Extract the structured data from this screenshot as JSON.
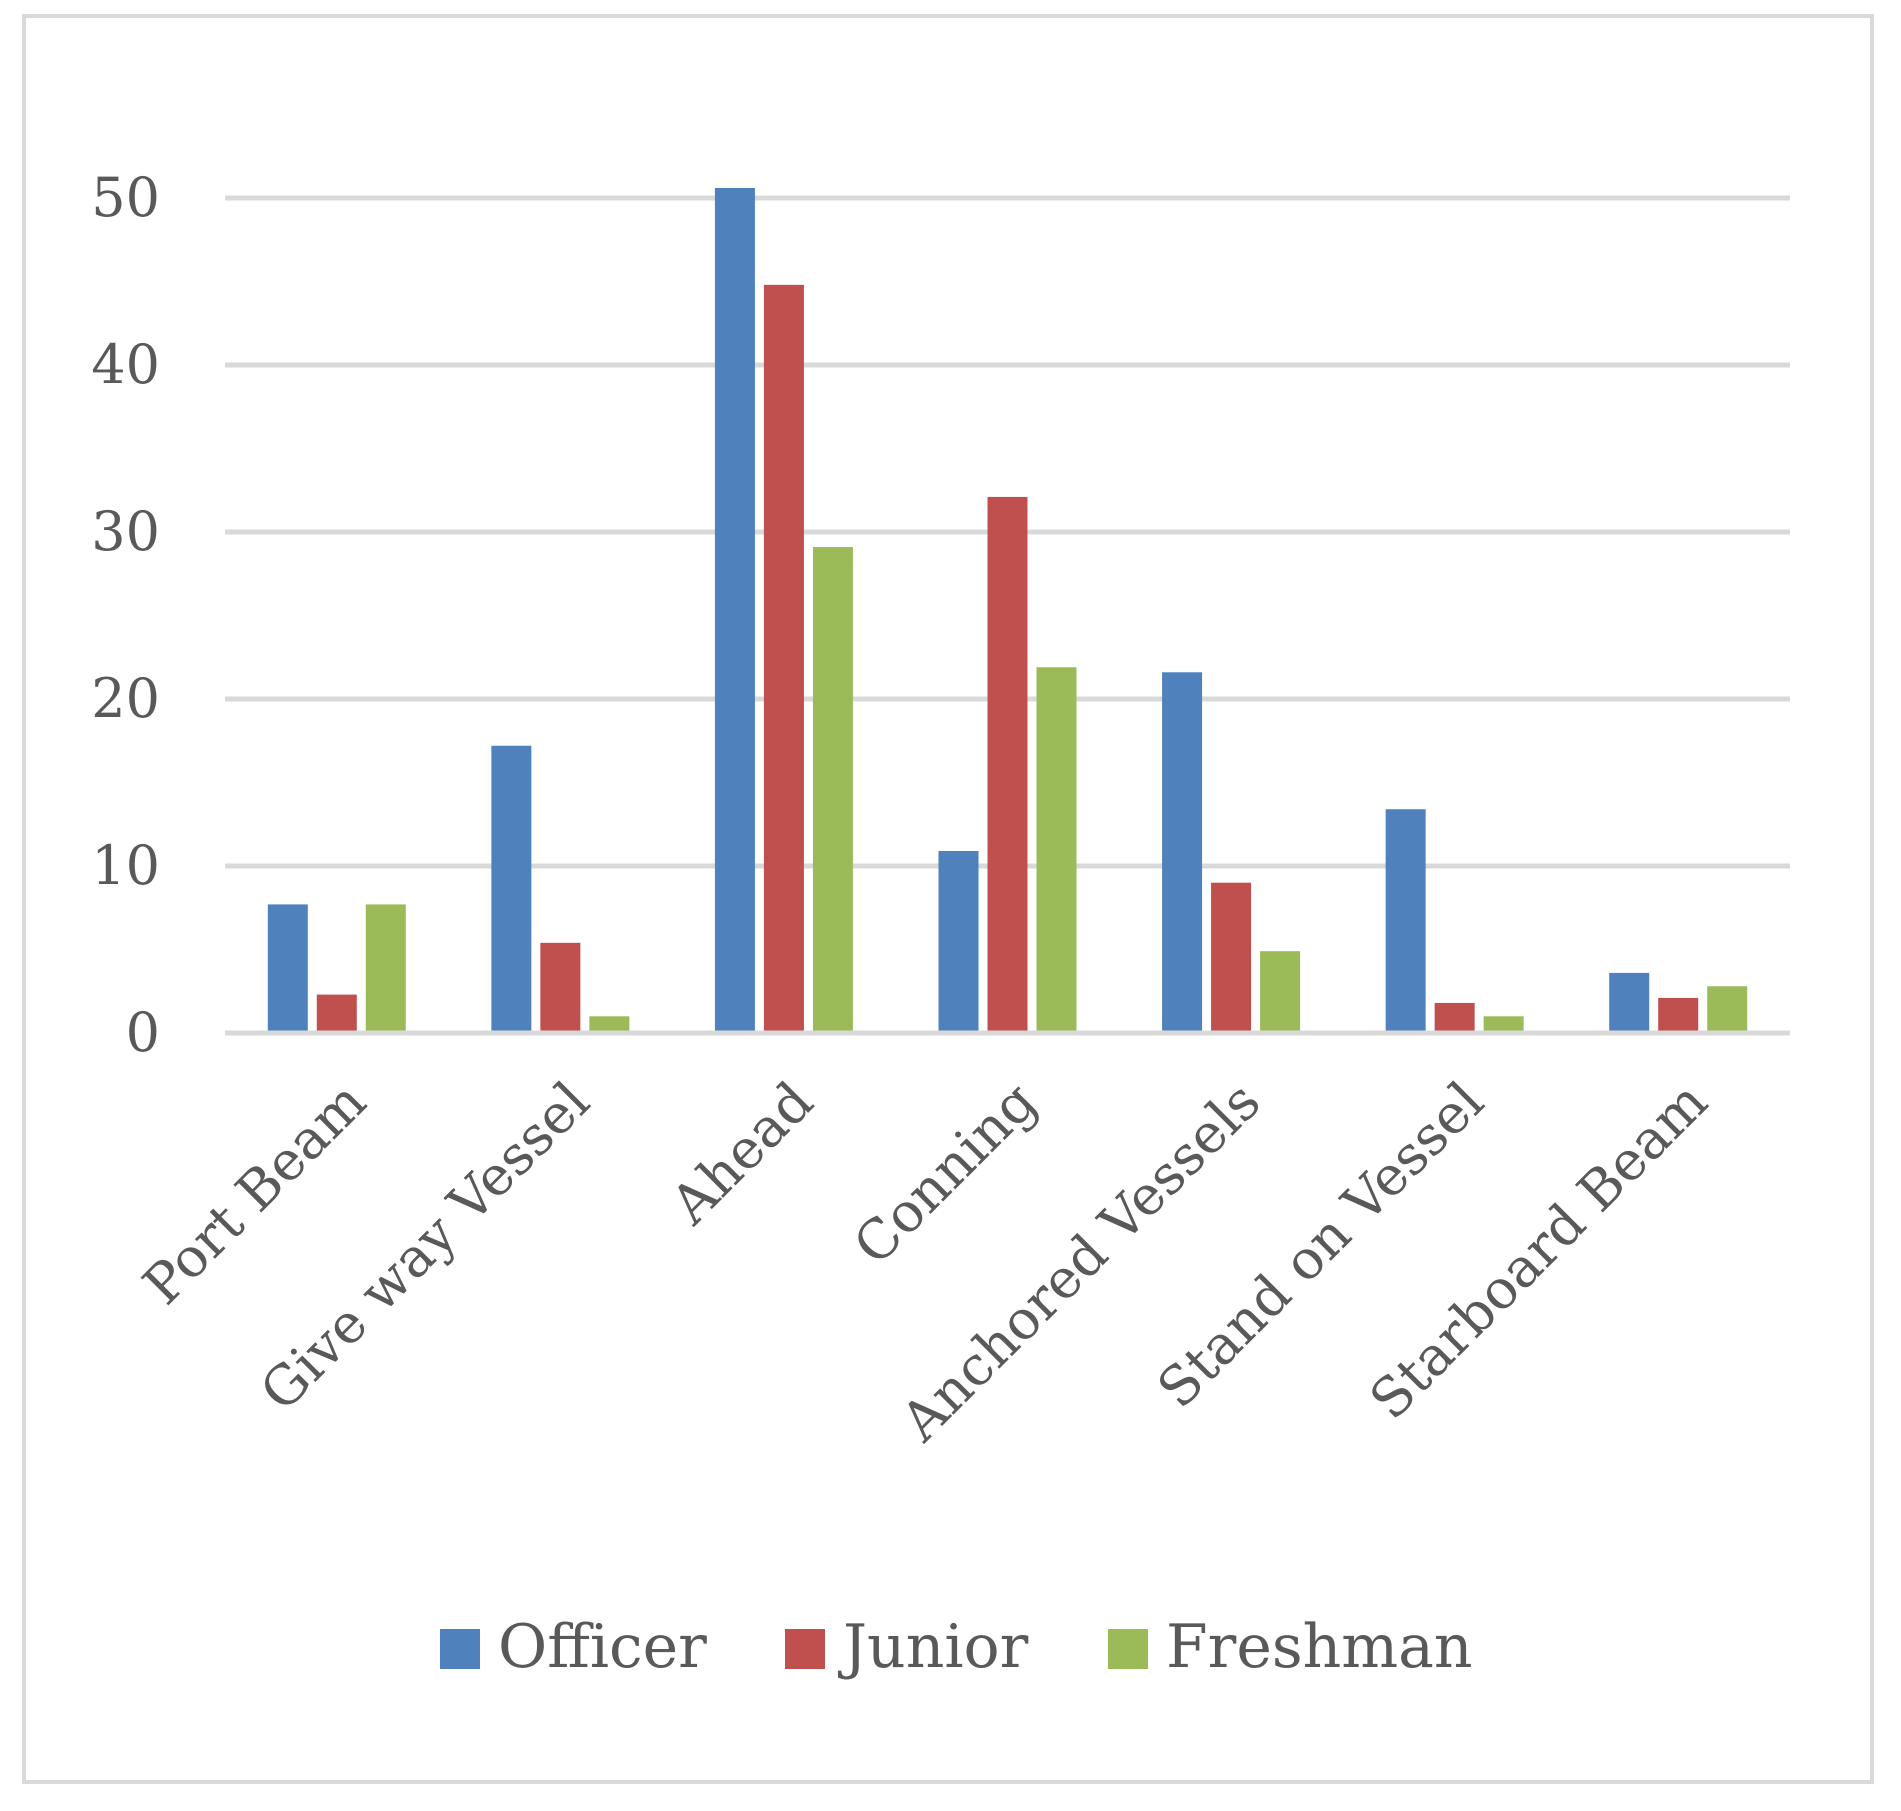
{
  "chart_data": {
    "type": "bar",
    "title": "",
    "xlabel": "",
    "ylabel": "",
    "ylim": [
      0,
      50
    ],
    "yticks": [
      0,
      10,
      20,
      30,
      40,
      50
    ],
    "grid": true,
    "legend_position": "bottom",
    "categories": [
      "Port Beam",
      "Give way Vessel",
      "Ahead",
      "Conning",
      "Anchored Vessels",
      "Stand on Vessel",
      "Starboard Beam"
    ],
    "series": [
      {
        "name": "Officer",
        "color": "#4f81bd",
        "values": [
          7.7,
          17.2,
          50.6,
          10.9,
          21.6,
          13.4,
          3.6
        ]
      },
      {
        "name": "Junior",
        "color": "#c0504d",
        "values": [
          2.3,
          5.4,
          44.8,
          32.1,
          9.0,
          1.8,
          2.1
        ]
      },
      {
        "name": "Freshman",
        "color": "#9bbb59",
        "values": [
          7.7,
          1.0,
          29.1,
          21.9,
          4.9,
          1.0,
          2.8
        ]
      }
    ]
  }
}
